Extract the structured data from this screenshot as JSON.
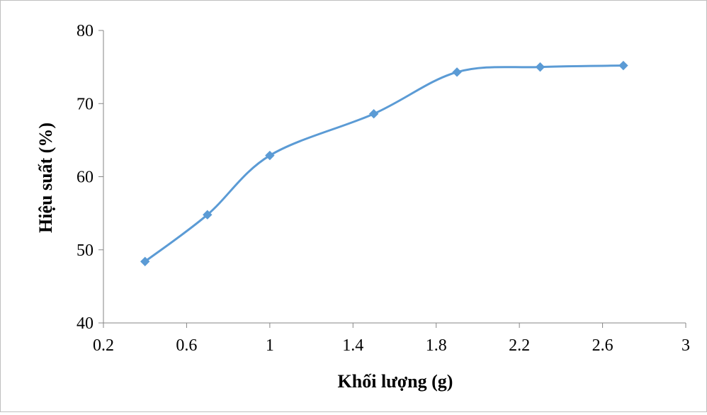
{
  "chart_data": {
    "type": "line",
    "smooth": true,
    "title": "",
    "xlabel": "Khối lượng (g)",
    "ylabel": "Hiệu suất (%)",
    "xlim": [
      0.2,
      3
    ],
    "ylim": [
      40,
      80
    ],
    "x_ticks": [
      "0.2",
      "0.6",
      "1",
      "1.4",
      "1.8",
      "2.2",
      "2.6",
      "3"
    ],
    "y_ticks": [
      "40",
      "50",
      "60",
      "70",
      "80"
    ],
    "grid": false,
    "legend": "none",
    "series": [
      {
        "color": "#5b9bd5",
        "marker": "diamond",
        "x": [
          0.4,
          0.7,
          1.0,
          1.5,
          1.9,
          2.3,
          2.7
        ],
        "y": [
          48.4,
          54.8,
          62.9,
          68.6,
          74.3,
          75.0,
          75.2
        ]
      }
    ]
  }
}
